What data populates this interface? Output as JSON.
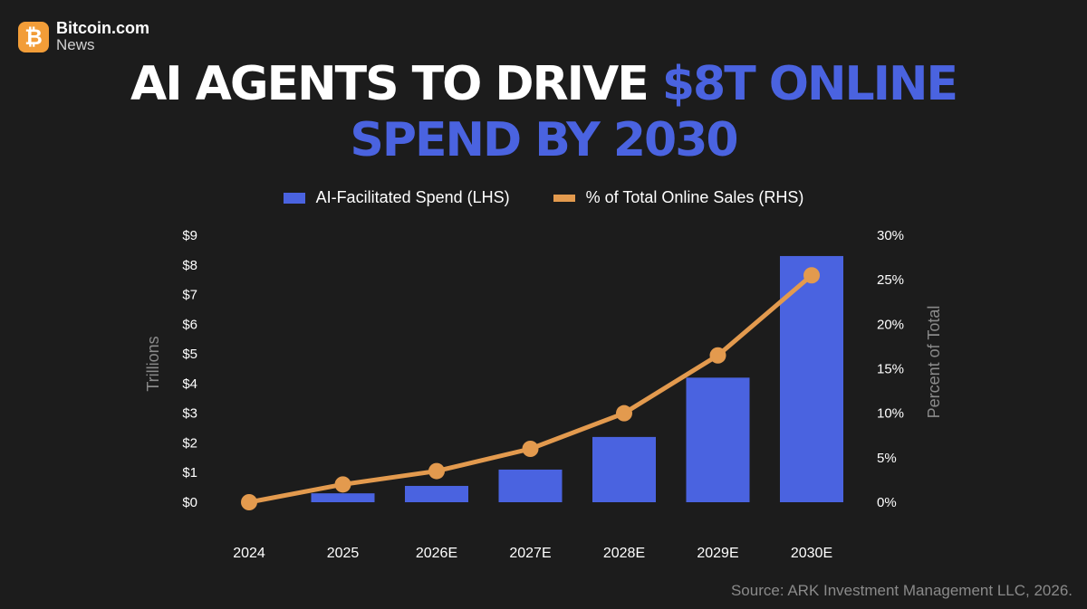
{
  "brand": {
    "name": "Bitcoin.com",
    "sub": "News",
    "badge": "₿"
  },
  "title": {
    "line1_white": "AI AGENTS TO DRIVE ",
    "line1_accent": "$8T ONLINE",
    "line2_accent": "SPEND BY 2030"
  },
  "colors": {
    "bar": "#4a63e0",
    "line": "#e39a4e",
    "accent_text": "#4a63e0",
    "background": "#1c1c1c"
  },
  "chart_data": {
    "type": "bar",
    "legend": [
      "AI-Facilitated Spend (LHS)",
      "% of Total Online Sales (RHS)"
    ],
    "legend_placement": "top-center",
    "categories": [
      "2024",
      "2025",
      "2026E",
      "2027E",
      "2028E",
      "2029E",
      "2030E"
    ],
    "series": [
      {
        "name": "AI-Facilitated Spend (LHS)",
        "type": "bar",
        "axis": "left",
        "values": [
          0.0,
          0.3,
          0.55,
          1.1,
          2.2,
          4.2,
          8.3
        ]
      },
      {
        "name": "% of Total Online Sales (RHS)",
        "type": "line",
        "axis": "right",
        "values": [
          0,
          2,
          3.5,
          6,
          10,
          16.5,
          25.5
        ]
      }
    ],
    "ylabel_left": "Trillions",
    "ylabel_right": "Percent of Total",
    "ylim_left": [
      0,
      9
    ],
    "ylim_right": [
      0,
      30
    ],
    "yticks_left": [
      "$0",
      "$1",
      "$2",
      "$3",
      "$4",
      "$5",
      "$6",
      "$7",
      "$8",
      "$9"
    ],
    "yticks_right": [
      "0%",
      "5%",
      "10%",
      "15%",
      "20%",
      "25%",
      "30%"
    ],
    "grid": false
  },
  "source": "Source: ARK Investment Management LLC, 2026."
}
